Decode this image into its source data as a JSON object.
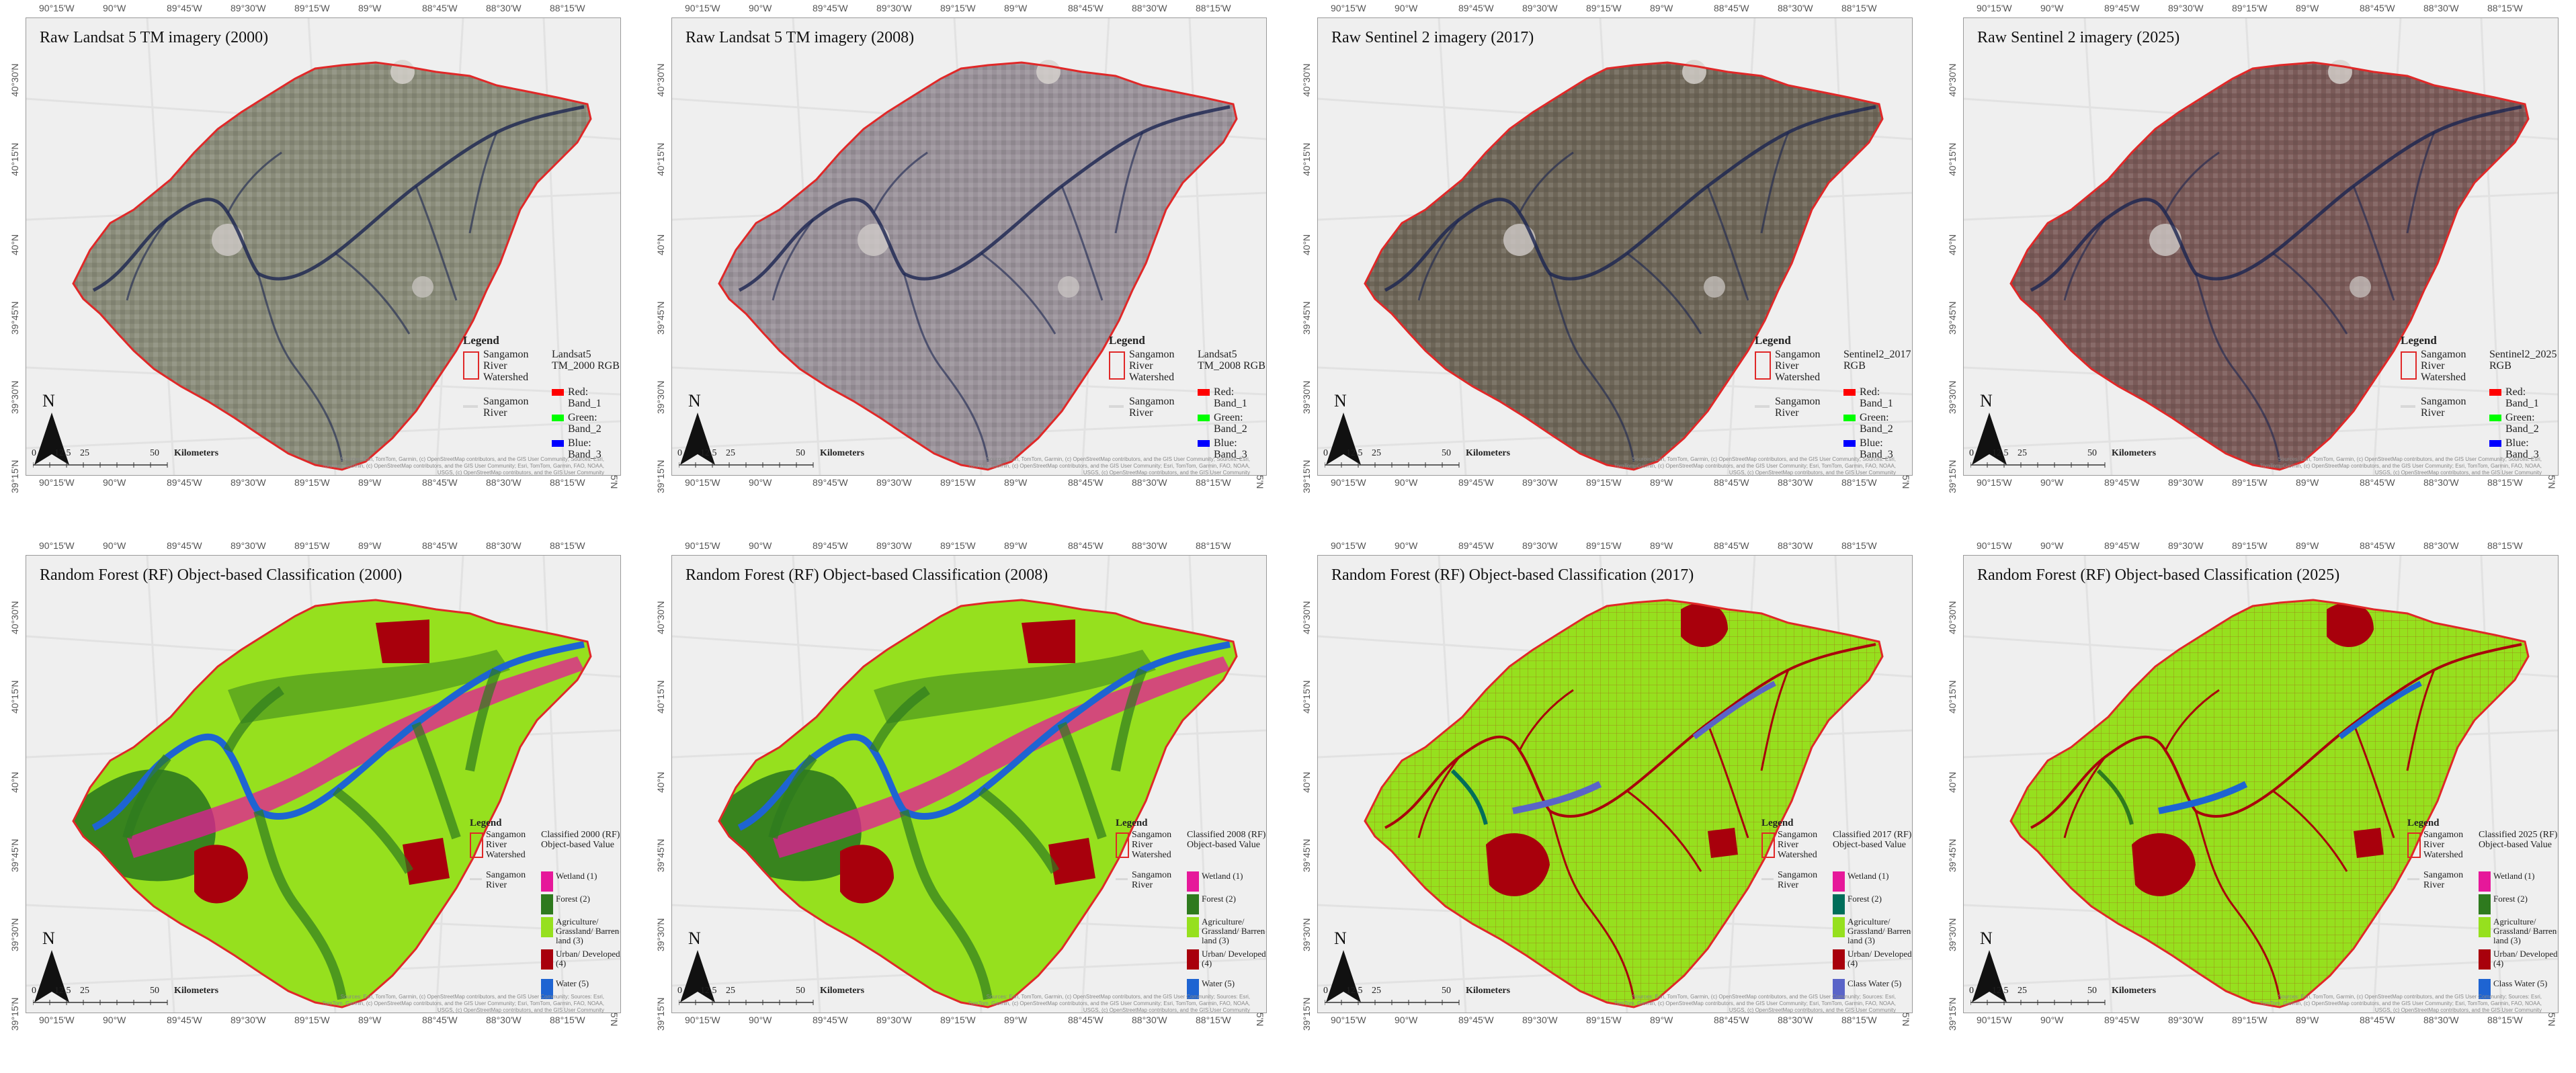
{
  "lon_ticks": [
    "90°15'W",
    "90°W",
    "89°45'W",
    "89°30'W",
    "89°15'W",
    "89°W",
    "88°45'W",
    "88°30'W",
    "88°15'W"
  ],
  "lat_ticks": [
    "40°30'N",
    "40°15'N",
    "40°N",
    "39°45'N",
    "39°30'N",
    "39°15'N"
  ],
  "north_label": "N",
  "scale": {
    "ticks": [
      "0",
      "12.5",
      "25",
      "50"
    ],
    "unit": "Kilometers"
  },
  "attribution": "Sources: Esri, TomTom, Garmin, (c) OpenStreetMap contributors, and the GIS User Community; Sources: Esri, TomTom, Garmin, (c) OpenStreetMap contributors, and the GIS User Community; Esri, TomTom, Garmin, FAO, NOAA, USGS, (c) OpenStreetMap contributors, and the GIS User Community",
  "raw_panels": [
    {
      "title": "Raw Landsat 5 TM imagery (2000)",
      "raster": "Landsat5 TM_2000 RGB",
      "tone": "#8a8c7a",
      "legend": {
        "title": "Legend",
        "watershed": "Sangamon River Watershed",
        "river": "Sangamon River",
        "bands": [
          {
            "label": "Red: Band_1",
            "color": "#ff0000"
          },
          {
            "label": "Green: Band_2",
            "color": "#00ff00"
          },
          {
            "label": "Blue: Band_3",
            "color": "#0000ff"
          }
        ]
      }
    },
    {
      "title": "Raw Landsat 5 TM imagery (2008)",
      "raster": "Landsat5 TM_2008 RGB",
      "tone": "#9a929a",
      "legend": {
        "title": "Legend",
        "watershed": "Sangamon River Watershed",
        "river": "Sangamon River",
        "bands": [
          {
            "label": "Red: Band_1",
            "color": "#ff0000"
          },
          {
            "label": "Green: Band_2",
            "color": "#00ff00"
          },
          {
            "label": "Blue: Band_3",
            "color": "#0000ff"
          }
        ]
      }
    },
    {
      "title": "Raw Sentinel 2 imagery (2017)",
      "raster": "Sentinel2_2017 RGB",
      "tone": "#6e6658",
      "legend": {
        "title": "Legend",
        "watershed": "Sangamon River Watershed",
        "river": "Sangamon River",
        "bands": [
          {
            "label": "Red: Band_1",
            "color": "#ff0000"
          },
          {
            "label": "Green: Band_2",
            "color": "#00ff00"
          },
          {
            "label": "Blue: Band_3",
            "color": "#0000ff"
          }
        ]
      }
    },
    {
      "title": "Raw Sentinel 2 imagery (2025)",
      "raster": "Sentinel2_2025 RGB",
      "tone": "#7a5a58",
      "legend": {
        "title": "Legend",
        "watershed": "Sangamon River Watershed",
        "river": "Sangamon River",
        "bands": [
          {
            "label": "Red: Band_1",
            "color": "#ff0000"
          },
          {
            "label": "Green: Band_2",
            "color": "#00ff00"
          },
          {
            "label": "Blue: Band_3",
            "color": "#0000ff"
          }
        ]
      }
    }
  ],
  "class_panels": [
    {
      "title": "Random Forest (RF) Object-based Classification (2000)",
      "legend": {
        "title": "Legend",
        "watershed": "Sangamon River Watershed",
        "river": "Sangamon River",
        "class_title": "Classified 2000 (RF) Object-based Value",
        "classes": [
          {
            "label": "Wetland (1)",
            "color": "#e6189a"
          },
          {
            "label": "Forest (2)",
            "color": "#2e7a1e"
          },
          {
            "label": "Agriculture/ Grassland/ Barren land (3)",
            "color": "#96e01e"
          },
          {
            "label": "Urban/ Developed (4)",
            "color": "#a8000c"
          },
          {
            "label": "Water (5)",
            "color": "#1e64d2"
          }
        ]
      }
    },
    {
      "title": "Random Forest (RF) Object-based Classification (2008)",
      "legend": {
        "title": "Legend",
        "watershed": "Sangamon River Watershed",
        "river": "Sangamon River",
        "class_title": "Classified 2008 (RF) Object-based Value",
        "classes": [
          {
            "label": "Wetland (1)",
            "color": "#e6189a"
          },
          {
            "label": "Forest (2)",
            "color": "#2e7a1e"
          },
          {
            "label": "Agriculture/ Grassland/ Barren land (3)",
            "color": "#96e01e"
          },
          {
            "label": "Urban/ Developed (4)",
            "color": "#a8000c"
          },
          {
            "label": "Water (5)",
            "color": "#1e64d2"
          }
        ]
      }
    },
    {
      "title": "Random Forest (RF) Object-based Classification (2017)",
      "legend": {
        "title": "Legend",
        "watershed": "Sangamon River Watershed",
        "river": "Sangamon River",
        "class_title": "Classified 2017 (RF) Object-based Value",
        "classes": [
          {
            "label": "Wetland (1)",
            "color": "#e6189a"
          },
          {
            "label": "Forest (2)",
            "color": "#006e5a"
          },
          {
            "label": "Agriculture/ Grassland/ Barren land (3)",
            "color": "#96e01e"
          },
          {
            "label": "Urban/ Developed (4)",
            "color": "#a8000c"
          },
          {
            "label": "Class Water (5)",
            "color": "#5a64c8"
          }
        ]
      }
    },
    {
      "title": "Random Forest (RF) Object-based Classification (2025)",
      "legend": {
        "title": "Legend",
        "watershed": "Sangamon River Watershed",
        "river": "Sangamon River",
        "class_title": "Classified 2025 (RF) Object-based Value",
        "classes": [
          {
            "label": "Wetland (1)",
            "color": "#e6189a"
          },
          {
            "label": "Forest (2)",
            "color": "#2e7a1e"
          },
          {
            "label": "Agriculture/ Grassland/ Barren land (3)",
            "color": "#96e01e"
          },
          {
            "label": "Urban/ Developed (4)",
            "color": "#a8000c"
          },
          {
            "label": "Class Water (5)",
            "color": "#1e64d2"
          }
        ]
      }
    }
  ]
}
